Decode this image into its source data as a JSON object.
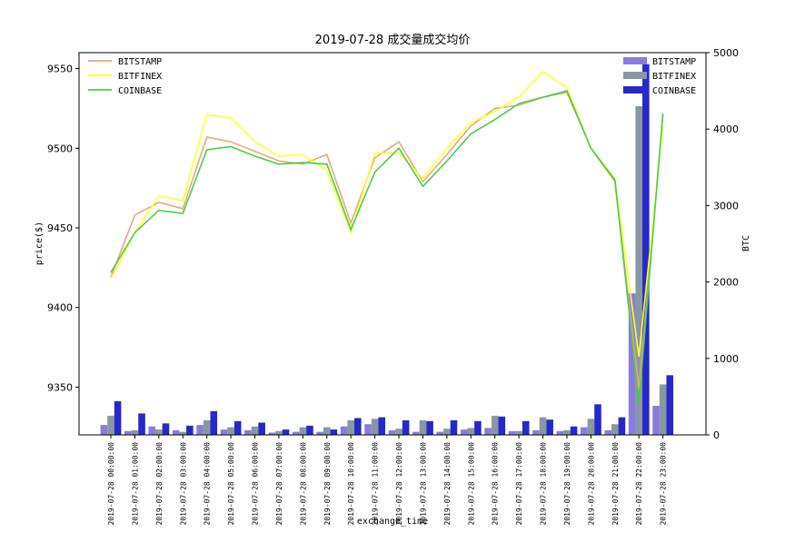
{
  "chart_data": {
    "type": "line+bar",
    "title": "2019-07-28 成交量成交均价",
    "xlabel": "exchange_time",
    "ylabel_left": "price($)",
    "ylabel_right": "BTC",
    "ylim_left": [
      9320,
      9560
    ],
    "ylim_right": [
      0,
      5000
    ],
    "yticks_left": [
      "9350",
      "9400",
      "9450",
      "9500",
      "9550"
    ],
    "yticks_right": [
      "0",
      "1000",
      "2000",
      "3000",
      "4000",
      "5000"
    ],
    "categories": [
      "2019-07-28 00:00:00",
      "2019-07-28 01:00:00",
      "2019-07-28 02:00:00",
      "2019-07-28 03:00:00",
      "2019-07-28 04:00:00",
      "2019-07-28 05:00:00",
      "2019-07-28 06:00:00",
      "2019-07-28 07:00:00",
      "2019-07-28 08:00:00",
      "2019-07-28 09:00:00",
      "2019-07-28 10:00:00",
      "2019-07-28 11:00:00",
      "2019-07-28 12:00:00",
      "2019-07-28 13:00:00",
      "2019-07-28 14:00:00",
      "2019-07-28 15:00:00",
      "2019-07-28 16:00:00",
      "2019-07-28 17:00:00",
      "2019-07-28 18:00:00",
      "2019-07-28 19:00:00",
      "2019-07-28 20:00:00",
      "2019-07-28 21:00:00",
      "2019-07-28 22:00:00",
      "2019-07-28 23:00:00"
    ],
    "price_series": [
      {
        "name": "BITSTAMP",
        "color": "#e8a87c",
        "values": [
          9419,
          9458,
          9466,
          9462,
          9507,
          9504,
          9498,
          9492,
          9490,
          9496,
          9453,
          9494,
          9504,
          9479,
          9496,
          9514,
          9525,
          9527,
          9532,
          9535,
          9500,
          9479,
          9349,
          9521
        ]
      },
      {
        "name": "BITFINEX",
        "color": "#ffff33",
        "values": [
          9418,
          9447,
          9470,
          9467,
          9521,
          9519,
          9504,
          9495,
          9496,
          9486,
          9447,
          9497,
          9497,
          9481,
          9500,
          9516,
          9523,
          9532,
          9548,
          9538,
          9500,
          9481,
          9369,
          9514
        ]
      },
      {
        "name": "COINBASE",
        "color": "#4ccc4c",
        "values": [
          9422,
          9447,
          9461,
          9459,
          9499,
          9501,
          9495,
          9490,
          9491,
          9490,
          9449,
          9485,
          9500,
          9476,
          9492,
          9509,
          9518,
          9528,
          9532,
          9536,
          9500,
          9480,
          9340,
          9522
        ]
      }
    ],
    "volume_series": [
      {
        "name": "BITSTAMP",
        "color": "#8a7cdc",
        "values": [
          130,
          50,
          110,
          60,
          130,
          70,
          60,
          30,
          40,
          40,
          110,
          140,
          60,
          40,
          40,
          70,
          90,
          50,
          60,
          50,
          100,
          60,
          1850,
          380
        ]
      },
      {
        "name": "BITFINEX",
        "color": "#8897a5",
        "values": [
          250,
          60,
          70,
          40,
          190,
          100,
          110,
          50,
          100,
          100,
          190,
          210,
          80,
          190,
          80,
          90,
          250,
          50,
          230,
          60,
          210,
          140,
          4300,
          660
        ]
      },
      {
        "name": "COINBASE",
        "color": "#2828c8",
        "values": [
          440,
          280,
          150,
          120,
          310,
          180,
          160,
          70,
          120,
          70,
          220,
          230,
          190,
          180,
          190,
          180,
          240,
          180,
          200,
          110,
          400,
          230,
          4850,
          780
        ]
      }
    ],
    "grid": false,
    "legend_left": "top-left",
    "legend_right": "top-right"
  }
}
